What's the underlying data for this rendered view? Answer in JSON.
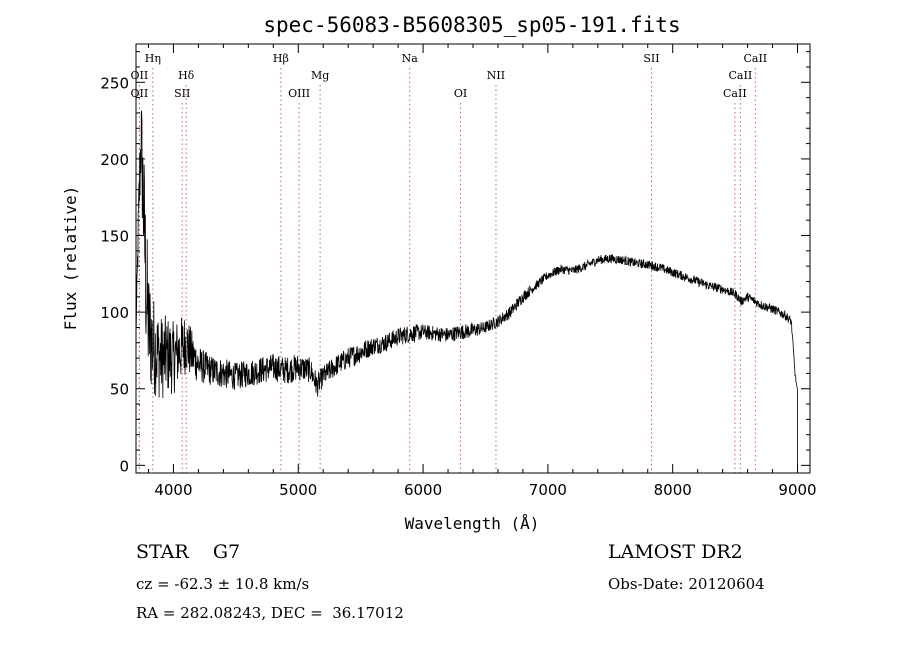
{
  "chart_data": {
    "type": "line",
    "title": "spec-56083-B5608305_sp05-191.fits",
    "xlabel": "Wavelength (Å)",
    "ylabel": "Flux (relative)",
    "xlim": [
      3700,
      9100
    ],
    "ylim": [
      -5,
      275
    ],
    "x_ticks": [
      4000,
      5000,
      6000,
      7000,
      8000,
      9000
    ],
    "y_ticks": [
      0,
      50,
      100,
      150,
      200,
      250
    ],
    "grid": false,
    "line_color": "#000000",
    "marker_color": "#d06060",
    "spectrum": {
      "x": [
        3700,
        3720,
        3740,
        3760,
        3780,
        3800,
        3830,
        3860,
        3900,
        3950,
        4000,
        4050,
        4100,
        4150,
        4200,
        4300,
        4400,
        4500,
        4600,
        4700,
        4800,
        4900,
        5000,
        5100,
        5150,
        5200,
        5300,
        5400,
        5500,
        5600,
        5700,
        5800,
        5900,
        6000,
        6100,
        6200,
        6300,
        6400,
        6500,
        6600,
        6700,
        6800,
        6900,
        7000,
        7100,
        7200,
        7300,
        7400,
        7500,
        7600,
        7700,
        7800,
        7900,
        8000,
        8100,
        8200,
        8300,
        8400,
        8500,
        8550,
        8600,
        8700,
        8800,
        8900,
        8950,
        8980,
        9000
      ],
      "y": [
        85,
        160,
        215,
        170,
        120,
        90,
        80,
        75,
        70,
        72,
        70,
        75,
        80,
        72,
        66,
        62,
        60,
        58,
        60,
        62,
        64,
        62,
        64,
        62,
        52,
        58,
        65,
        70,
        74,
        78,
        80,
        84,
        86,
        87,
        86,
        85,
        87,
        88,
        90,
        94,
        100,
        110,
        117,
        124,
        128,
        127,
        130,
        134,
        135,
        134,
        132,
        131,
        129,
        126,
        123,
        120,
        117,
        115,
        112,
        107,
        110,
        105,
        102,
        98,
        94,
        60,
        48
      ],
      "noise": [
        4,
        20,
        35,
        45,
        50,
        40,
        35,
        30,
        28,
        26,
        24,
        22,
        20,
        16,
        12,
        10,
        10,
        9,
        9,
        9,
        9,
        9,
        9,
        8,
        8,
        7,
        7,
        7,
        7,
        6,
        6,
        6,
        6,
        5,
        5,
        5,
        5,
        5,
        4,
        4,
        4,
        4,
        3,
        3,
        3,
        3,
        3,
        3,
        3,
        3,
        3,
        3,
        3,
        3,
        3,
        3,
        3,
        3,
        3,
        3,
        3,
        3,
        3,
        3,
        3,
        2,
        1
      ]
    },
    "lines": [
      {
        "label": "Hη",
        "x": 3835,
        "row": 0
      },
      {
        "label": "OII",
        "x": 3727,
        "row": 1
      },
      {
        "label": "OII",
        "x": 3727,
        "row": 2
      },
      {
        "label": "Hδ",
        "x": 4102,
        "row": 1
      },
      {
        "label": "SII",
        "x": 4070,
        "row": 2
      },
      {
        "label": "Hβ",
        "x": 4861,
        "row": 0
      },
      {
        "label": "Mg",
        "x": 5175,
        "row": 1
      },
      {
        "label": "OIII",
        "x": 5007,
        "row": 2
      },
      {
        "label": "Na",
        "x": 5893,
        "row": 0
      },
      {
        "label": "OI",
        "x": 6300,
        "row": 2
      },
      {
        "label": "NII",
        "x": 6584,
        "row": 1
      },
      {
        "label": "SII",
        "x": 7830,
        "row": 0
      },
      {
        "label": "CaII",
        "x": 8662,
        "row": 0
      },
      {
        "label": "CaII",
        "x": 8542,
        "row": 1
      },
      {
        "label": "CaII",
        "x": 8498,
        "row": 2
      }
    ]
  },
  "info": {
    "class": "STAR    G7",
    "cz": "cz = -62.3 ± 10.8 km/s",
    "coords": "RA = 282.08243, DEC =  36.17012",
    "survey": "LAMOST DR2",
    "obs_date": "Obs-Date: 20120604"
  }
}
